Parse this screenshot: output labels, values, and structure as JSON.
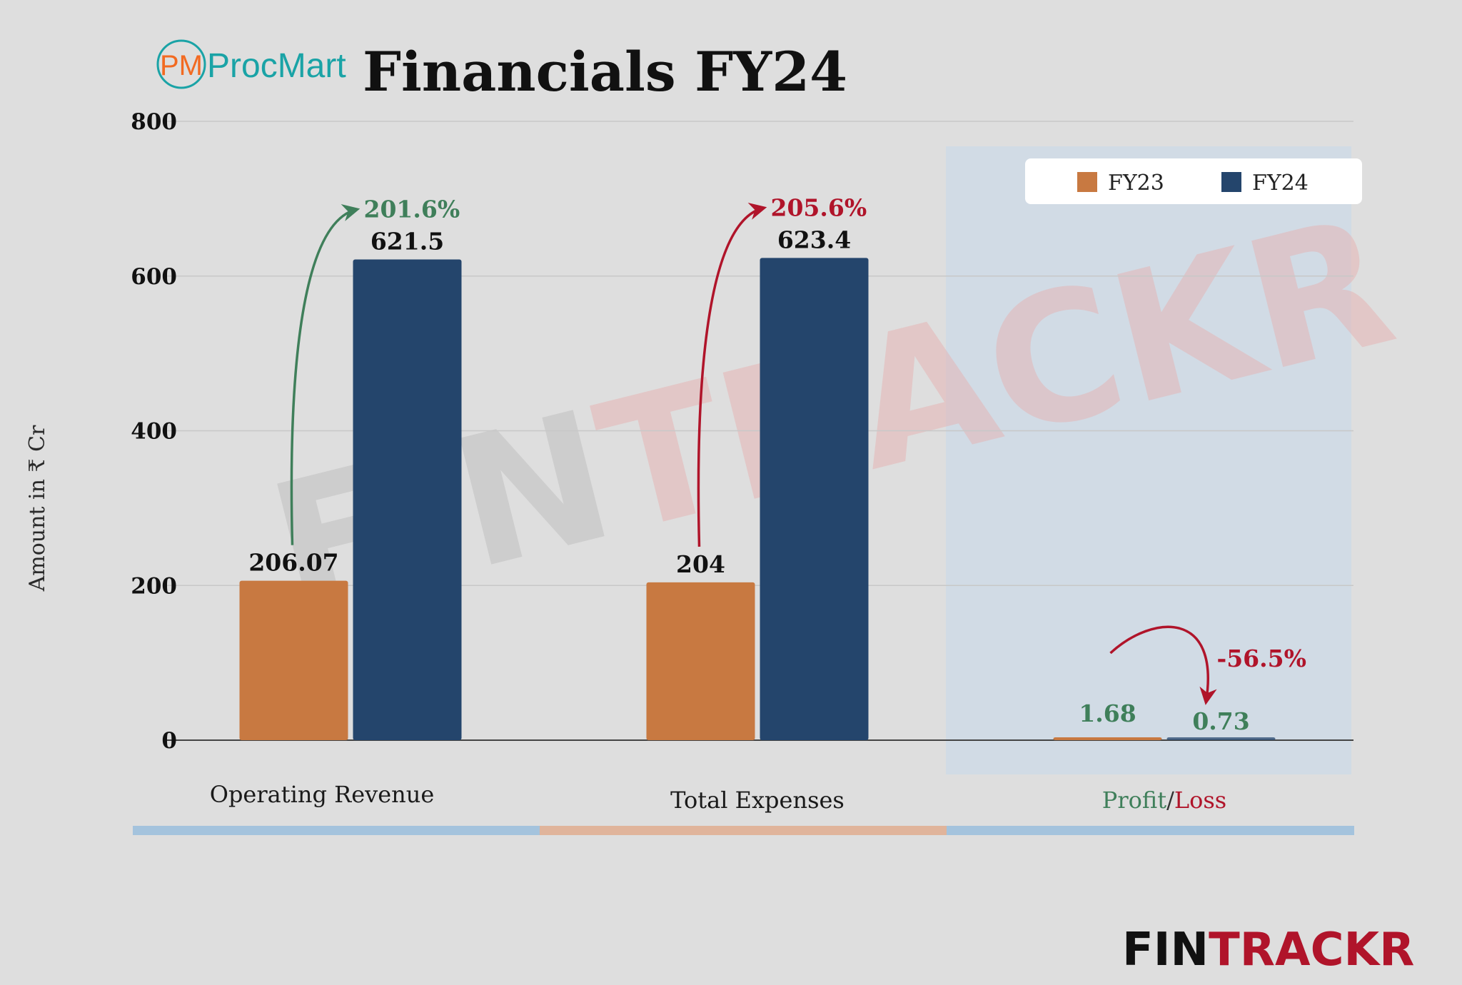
{
  "header": {
    "logo_text": "ProcMart",
    "logo_initials": "PM",
    "title": "Financials FY24"
  },
  "colors": {
    "fy23": "#c87941",
    "fy24": "#24456c",
    "up_green": "#3f7f5a",
    "down_red": "#b0142a",
    "band_blue": "#a4c3dd",
    "band_orange": "#e0b49b",
    "logo_teal": "#1aa3a6",
    "logo_orange": "#f26a21"
  },
  "watermark": {
    "text_left": "FIN",
    "text_right": "TRACKR"
  },
  "footer": {
    "brand_left": "FIN",
    "brand_right": "TRACKR"
  },
  "chart_data": {
    "type": "bar",
    "categories": [
      "Operating Revenue",
      "Total Expenses",
      "Profit/Loss"
    ],
    "category_parts": [
      {
        "text": "Profit",
        "color": "#3f7f5a"
      },
      {
        "text": "/",
        "color": "#333333"
      },
      {
        "text": "Loss",
        "color": "#b0142a"
      }
    ],
    "series": [
      {
        "name": "FY23",
        "values": [
          206.07,
          204,
          1.68
        ]
      },
      {
        "name": "FY24",
        "values": [
          621.5,
          623.4,
          0.73
        ]
      }
    ],
    "data_labels": [
      [
        "206.07",
        "621.5"
      ],
      [
        "204",
        "623.4"
      ],
      [
        "1.68",
        "0.73"
      ]
    ],
    "changes": [
      {
        "label": "201.6%",
        "direction": "up",
        "color": "#3f7f5a"
      },
      {
        "label": "205.6%",
        "direction": "up",
        "color": "#b0142a"
      },
      {
        "label": "-56.5%",
        "direction": "down",
        "color": "#b0142a"
      }
    ],
    "ylabel": "Amount in ₹ Cr",
    "ylim": [
      0,
      800
    ],
    "yticks": [
      0,
      200,
      400,
      600,
      800
    ],
    "grid": true,
    "legend_position": "top-right"
  }
}
